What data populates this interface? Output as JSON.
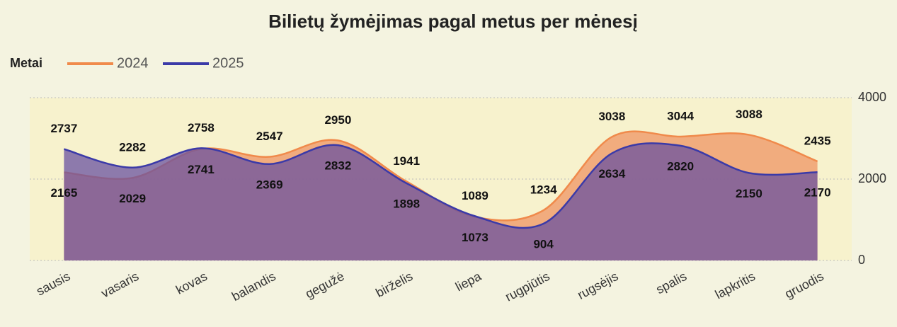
{
  "chart_data": {
    "type": "area",
    "title": "Bilietų žymėjimas pagal metus per mėnesį",
    "legend_title": "Metai",
    "categories": [
      "sausis",
      "vasaris",
      "kovas",
      "balandis",
      "gegužė",
      "birželis",
      "liepa",
      "rugpjūtis",
      "rugsėjis",
      "spalis",
      "lapkritis",
      "gruodis"
    ],
    "series": [
      {
        "name": "2024",
        "color": "#f08a4b",
        "values": [
          2165,
          2029,
          2741,
          2547,
          2950,
          1941,
          1073,
          1234,
          3038,
          3044,
          3088,
          2435
        ]
      },
      {
        "name": "2025",
        "color": "#3b3aa8",
        "values": [
          2737,
          2282,
          2758,
          2369,
          2832,
          1898,
          1089,
          904,
          2634,
          2820,
          2150,
          2170
        ]
      }
    ],
    "ylim": [
      0,
      4000
    ],
    "yticks": [
      0,
      2000,
      4000
    ],
    "grid": true
  }
}
